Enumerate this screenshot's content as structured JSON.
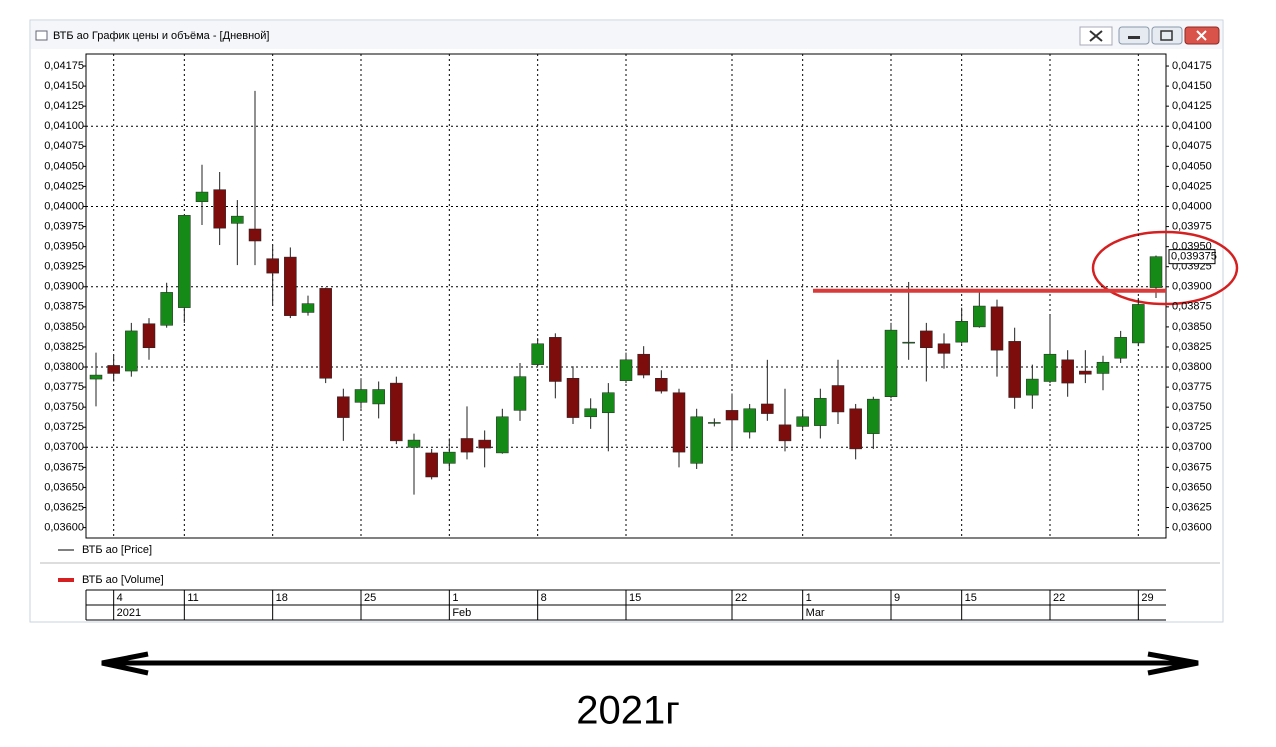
{
  "window": {
    "title": "ВТБ ао График цены и объёма - [Дневной]"
  },
  "caption": "2021г",
  "chart_data": {
    "type": "candlestick",
    "legend": [
      {
        "name": "ВТБ ао [Price]",
        "color": "#000000"
      },
      {
        "name": "ВТБ ао [Volume]",
        "color": "#d42020"
      }
    ],
    "up_color": "#168a16",
    "down_color": "#7d0c0c",
    "categories": [
      null,
      "4",
      null,
      null,
      null,
      "11",
      null,
      null,
      null,
      null,
      "18",
      null,
      null,
      null,
      null,
      "25",
      null,
      null,
      null,
      null,
      "1",
      null,
      null,
      null,
      null,
      "8",
      null,
      null,
      null,
      null,
      "15",
      null,
      null,
      null,
      null,
      null,
      "22",
      null,
      null,
      null,
      "1",
      null,
      null,
      null,
      null,
      "9",
      null,
      null,
      null,
      "15",
      null,
      null,
      null,
      null,
      "22",
      null,
      null,
      null,
      null,
      "29",
      null
    ],
    "months": [
      null,
      "2021",
      null,
      null,
      null,
      null,
      null,
      null,
      null,
      null,
      null,
      null,
      null,
      null,
      null,
      null,
      null,
      null,
      null,
      null,
      "Feb",
      null,
      null,
      null,
      null,
      null,
      null,
      null,
      null,
      null,
      null,
      null,
      null,
      null,
      null,
      null,
      null,
      null,
      null,
      null,
      "Mar",
      null,
      null,
      null,
      null,
      null,
      null,
      null,
      null,
      null,
      null,
      null,
      null,
      null,
      null,
      null,
      null,
      null,
      null,
      null,
      null
    ],
    "open": [
      0.03785,
      0.03802,
      0.03795,
      0.03854,
      0.03852,
      0.03874,
      0.04006,
      0.04021,
      0.03979,
      0.03972,
      0.03935,
      0.03937,
      0.03868,
      0.03898,
      0.03763,
      0.03756,
      0.03754,
      0.0378,
      0.037,
      0.03693,
      0.0368,
      0.03711,
      0.03709,
      0.03693,
      0.03746,
      0.03803,
      0.03837,
      0.03786,
      0.03738,
      0.03743,
      0.03783,
      0.03816,
      0.03786,
      0.03768,
      0.0368,
      0.03731,
      0.03746,
      0.03719,
      0.03754,
      0.03728,
      0.03726,
      0.03727,
      0.03777,
      0.03748,
      0.03717,
      0.03763,
      0.0383,
      0.03845,
      0.03829,
      0.03831,
      0.0385,
      0.03875,
      0.03832,
      0.03765,
      0.03782,
      0.03809,
      0.03795,
      0.03792,
      0.03811,
      0.0383,
      0.03899
    ],
    "high": [
      0.03818,
      0.03815,
      0.03855,
      0.03861,
      0.03905,
      0.03989,
      0.04052,
      0.04043,
      0.04008,
      0.04144,
      0.03952,
      0.03949,
      0.03889,
      0.03899,
      0.03773,
      0.03786,
      0.03782,
      0.03788,
      0.03717,
      0.03698,
      0.03711,
      0.03751,
      0.03721,
      0.03748,
      0.03805,
      0.03836,
      0.03842,
      0.03801,
      0.03761,
      0.0378,
      0.03818,
      0.03826,
      0.03796,
      0.03773,
      0.03748,
      0.03736,
      0.03767,
      0.03754,
      0.03809,
      0.03773,
      0.03746,
      0.03773,
      0.03809,
      0.03754,
      0.03763,
      0.03855,
      0.03906,
      0.03855,
      0.03842,
      0.03874,
      0.03893,
      0.03884,
      0.03849,
      0.03803,
      0.03864,
      0.03821,
      0.03821,
      0.03814,
      0.03845,
      0.03886,
      0.03939
    ],
    "low": [
      0.03751,
      0.03782,
      0.03788,
      0.03809,
      0.03849,
      0.03855,
      0.03977,
      0.03952,
      0.03927,
      0.03927,
      0.03876,
      0.03861,
      0.03864,
      0.0378,
      0.03708,
      0.03748,
      0.03736,
      0.03704,
      0.03641,
      0.0366,
      0.03673,
      0.03685,
      0.03675,
      0.03692,
      0.03733,
      0.03801,
      0.03761,
      0.03729,
      0.03723,
      0.03695,
      0.0378,
      0.03786,
      0.03767,
      0.03675,
      0.03673,
      0.03726,
      0.03698,
      0.03711,
      0.03733,
      0.03695,
      0.03723,
      0.03711,
      0.03729,
      0.03685,
      0.03698,
      0.03761,
      0.03809,
      0.03782,
      0.03798,
      0.03829,
      0.03849,
      0.03788,
      0.03748,
      0.03748,
      0.0378,
      0.03763,
      0.0378,
      0.03771,
      0.03805,
      0.03826,
      0.03886
    ],
    "close": [
      0.0379,
      0.03792,
      0.03845,
      0.03824,
      0.03893,
      0.03989,
      0.04018,
      0.03973,
      0.03988,
      0.03957,
      0.03917,
      0.03864,
      0.03879,
      0.03786,
      0.03737,
      0.03772,
      0.03772,
      0.03708,
      0.03709,
      0.03663,
      0.03694,
      0.03694,
      0.03699,
      0.03738,
      0.03788,
      0.03829,
      0.03782,
      0.03737,
      0.03748,
      0.03768,
      0.03809,
      0.0379,
      0.0377,
      0.03694,
      0.03738,
      0.03731,
      0.03734,
      0.03748,
      0.03742,
      0.03708,
      0.03738,
      0.03761,
      0.03744,
      0.03698,
      0.0376,
      0.03846,
      0.03831,
      0.03824,
      0.03817,
      0.03857,
      0.03876,
      0.03821,
      0.03762,
      0.03785,
      0.03816,
      0.0378,
      0.03791,
      0.03806,
      0.03837,
      0.03878,
      0.039375
    ],
    "last_label": {
      "value": 0.039375,
      "label": "0,039375"
    },
    "level": 0.03895,
    "level_color": "#d93b3b",
    "ylim": [
      0.03587,
      0.0419
    ],
    "yticks": [
      {
        "value": 0.036,
        "label": "0,03600"
      },
      {
        "value": 0.03625,
        "label": "0,03625"
      },
      {
        "value": 0.0365,
        "label": "0,03650"
      },
      {
        "value": 0.03675,
        "label": "0,03675"
      },
      {
        "value": 0.037,
        "label": "0,03700"
      },
      {
        "value": 0.03725,
        "label": "0,03725"
      },
      {
        "value": 0.0375,
        "label": "0,03750"
      },
      {
        "value": 0.03775,
        "label": "0,03775"
      },
      {
        "value": 0.038,
        "label": "0,03800"
      },
      {
        "value": 0.03825,
        "label": "0,03825"
      },
      {
        "value": 0.0385,
        "label": "0,03850"
      },
      {
        "value": 0.03875,
        "label": "0,03875"
      },
      {
        "value": 0.039,
        "label": "0,03900"
      },
      {
        "value": 0.03925,
        "label": "0,03925"
      },
      {
        "value": 0.0395,
        "label": "0,03950"
      },
      {
        "value": 0.03975,
        "label": "0,03975"
      },
      {
        "value": 0.04,
        "label": "0,04000"
      },
      {
        "value": 0.04025,
        "label": "0,04025"
      },
      {
        "value": 0.0405,
        "label": "0,04050"
      },
      {
        "value": 0.04075,
        "label": "0,04075"
      },
      {
        "value": 0.041,
        "label": "0,04100"
      },
      {
        "value": 0.04125,
        "label": "0,04125"
      },
      {
        "value": 0.0415,
        "label": "0,04150"
      },
      {
        "value": 0.04175,
        "label": "0,04175"
      }
    ],
    "grid": true
  }
}
